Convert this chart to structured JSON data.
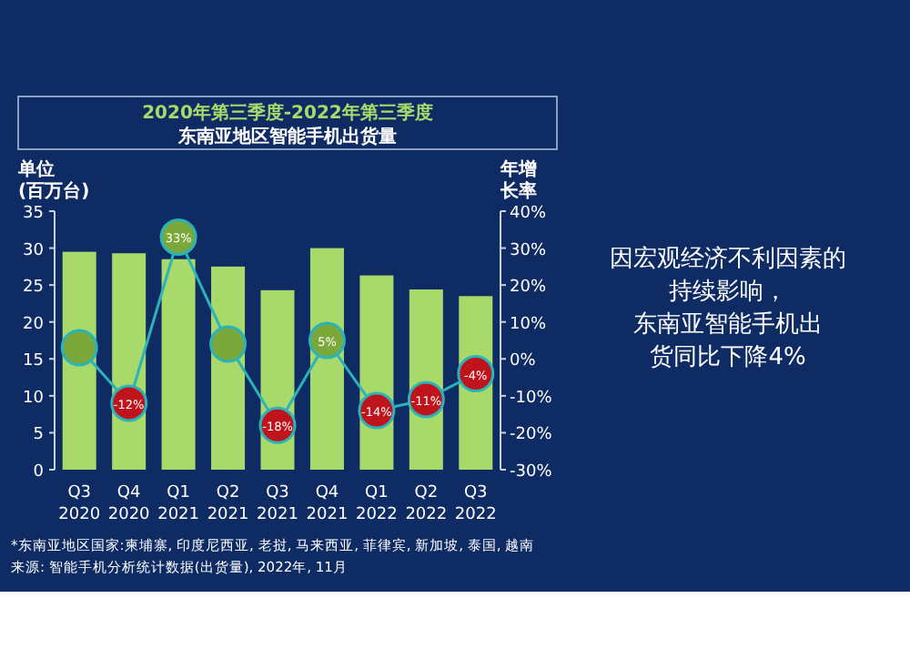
{
  "chart_data": {
    "type": "bar",
    "title": "2020年第三季度-2022年第三季度",
    "subtitle": "东南亚地区智能手机出货量",
    "ylabel": "单位 (百万台)",
    "y2label": "年增长率",
    "categories": [
      "Q3 2020",
      "Q4 2020",
      "Q1 2021",
      "Q2 2021",
      "Q3 2021",
      "Q4 2021",
      "Q1 2022",
      "Q2 2022",
      "Q3 2022"
    ],
    "series": [
      {
        "color": "#a8d96b",
        "values": [
          29.5,
          29.3,
          28.5,
          27.5,
          24.3,
          30,
          26.3,
          24.4,
          23.5
        ]
      },
      {
        "type": "line",
        "marker": "circle",
        "axis": "y2",
        "color": "#2ab3b8",
        "colors": [
          "#7aa83a",
          "#c0141c",
          "#7aa83a",
          "#7aa83a",
          "#c0141c",
          "#7aa83a",
          "#c0141c",
          "#c0141c",
          "#c0141c"
        ],
        "values": [
          3,
          -12,
          33,
          4,
          -18,
          5,
          -14,
          -11,
          -4
        ],
        "value_labels": [
          null,
          "-12%",
          "33%",
          null,
          "-18%",
          "5%",
          "-14%",
          "-11%",
          "-4%"
        ]
      }
    ],
    "ylim": [
      0,
      35
    ],
    "yticks": [
      0,
      5,
      10,
      15,
      20,
      25,
      30,
      35
    ],
    "y2lim": [
      -30,
      40
    ],
    "y2ticks": [
      {
        "value": -30,
        "label": "-30%"
      },
      {
        "value": -20,
        "label": "-20%"
      },
      {
        "value": -10,
        "label": "-10%"
      },
      {
        "value": 0,
        "label": "0%"
      },
      {
        "value": 10,
        "label": "10%"
      },
      {
        "value": 20,
        "label": "20%"
      },
      {
        "value": 30,
        "label": "30%"
      },
      {
        "value": 40,
        "label": "40%"
      }
    ],
    "annotations": [
      "因宏观经济不利因素的持续影响，东南亚智能手机出货同比下降4%",
      "*东南亚地区国家:柬埔寨, 印度尼西亚, 老挝, 马来西亚, 菲律宾, 新加坡, 泰国, 越南",
      "来源: 智能手机分析统计数据(出货量), 2022年, 11月"
    ]
  }
}
